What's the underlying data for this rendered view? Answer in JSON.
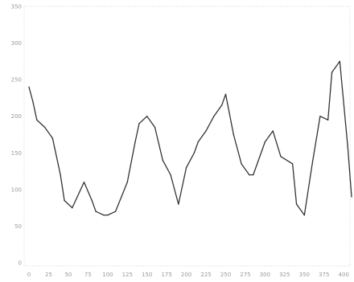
{
  "chart_data": {
    "type": "line",
    "title": "",
    "xlabel": "",
    "ylabel": "",
    "grid": false,
    "xlim": [
      0,
      410
    ],
    "ylim": [
      0,
      350
    ],
    "x_ticks": [
      "0",
      "25",
      "50",
      "75",
      "100",
      "125",
      "150",
      "175",
      "200",
      "225",
      "250",
      "275",
      "300",
      "325",
      "350",
      "375",
      "400"
    ],
    "y_ticks": [
      "0",
      "50",
      "100",
      "150",
      "200",
      "250",
      "300",
      "350"
    ],
    "series": [
      {
        "color": "#333333",
        "x": [
          0,
          5,
          10,
          20,
          30,
          40,
          45,
          55,
          70,
          80,
          85,
          95,
          100,
          110,
          125,
          135,
          140,
          150,
          160,
          170,
          180,
          190,
          200,
          210,
          215,
          225,
          235,
          245,
          250,
          260,
          270,
          280,
          285,
          300,
          310,
          320,
          335,
          340,
          350,
          360,
          370,
          380,
          385,
          395,
          405,
          410
        ],
        "y": [
          240,
          220,
          195,
          185,
          170,
          120,
          85,
          75,
          110,
          85,
          70,
          65,
          65,
          70,
          110,
          165,
          190,
          200,
          185,
          140,
          120,
          80,
          130,
          150,
          165,
          180,
          200,
          215,
          230,
          175,
          135,
          120,
          120,
          165,
          180,
          145,
          135,
          80,
          65,
          135,
          200,
          195,
          260,
          275,
          160,
          90
        ]
      }
    ]
  }
}
